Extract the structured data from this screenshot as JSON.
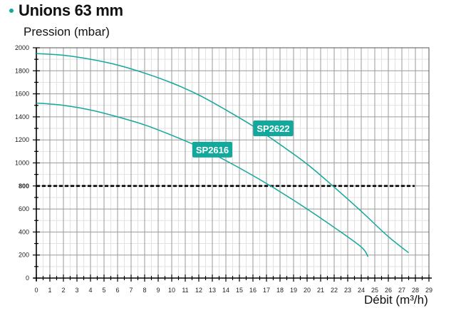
{
  "header": {
    "title": "Unions 63 mm"
  },
  "chart_data": {
    "type": "line",
    "title": "Unions 63 mm",
    "ylabel": "Pression (mbar)",
    "xlabel": "Débit (m³/h)",
    "xlim": [
      0,
      29
    ],
    "ylim": [
      0,
      2000
    ],
    "x_ticks": [
      "0",
      "1",
      "2",
      "3",
      "4",
      "5",
      "6",
      "7",
      "8",
      "9",
      "10",
      "11",
      "12",
      "13",
      "14",
      "15",
      "16",
      "17",
      "18",
      "19",
      "20",
      "21",
      "22",
      "23",
      "24",
      "25",
      "26",
      "27",
      "28",
      "29"
    ],
    "y_ticks": [
      "0",
      "200",
      "400",
      "600",
      "800",
      "1000",
      "1200",
      "1400",
      "1600",
      "1800",
      "2000"
    ],
    "grid": true,
    "series": [
      {
        "name": "SP2622",
        "color": "#12a89c",
        "x": [
          0,
          2,
          4,
          6,
          8,
          10,
          12,
          14,
          16,
          18,
          20,
          22,
          24,
          26,
          27.5
        ],
        "y": [
          1950,
          1935,
          1900,
          1850,
          1780,
          1695,
          1590,
          1460,
          1320,
          1160,
          990,
          790,
          580,
          360,
          220
        ]
      },
      {
        "name": "SP2616",
        "color": "#12a89c",
        "x": [
          0,
          2,
          4,
          6,
          8,
          10,
          12,
          14,
          16,
          18,
          20,
          22,
          24,
          24.5
        ],
        "y": [
          1520,
          1500,
          1460,
          1400,
          1330,
          1240,
          1140,
          1020,
          890,
          750,
          600,
          440,
          270,
          185
        ]
      }
    ],
    "reference_line": {
      "y": 800,
      "label": "800",
      "style": "dashed",
      "color": "#000000"
    },
    "annotations": [
      {
        "text": "SP2622",
        "x": 17.5,
        "y": 1300
      },
      {
        "text": "SP2616",
        "x": 13,
        "y": 1115
      }
    ]
  }
}
